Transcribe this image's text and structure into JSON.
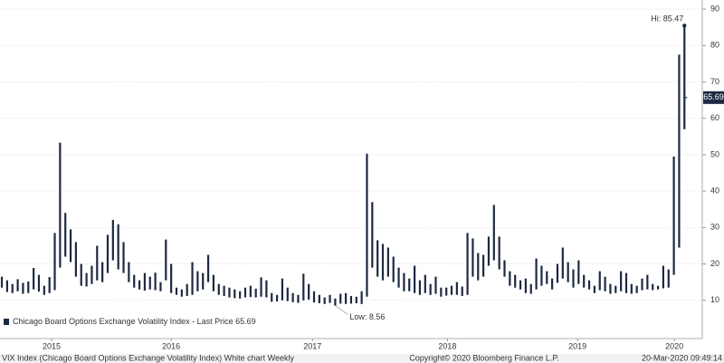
{
  "chart_data": {
    "type": "hlbar",
    "series": [
      {
        "name": "Chicago Board Options Exchange Volatility Index - Last Price",
        "color": "#1d2942",
        "high": [
          16.5,
          15.5,
          14.5,
          15.8,
          14.8,
          15.2,
          18.9,
          17.0,
          14.0,
          16.4,
          28.5,
          53.3,
          34.0,
          29.5,
          26.0,
          20.0,
          17.5,
          19.5,
          25.0,
          20.5,
          28.0,
          32.1,
          30.9,
          26.0,
          20.5,
          17.0,
          15.5,
          17.5,
          16.5,
          17.6,
          15.0,
          26.7,
          20.0,
          13.5,
          13.0,
          14.5,
          20.5,
          18.0,
          17.5,
          22.5,
          17.0,
          14.5,
          14.0,
          13.5,
          13.0,
          12.5,
          13.5,
          14.0,
          13.2,
          16.3,
          15.5,
          12.0,
          11.5,
          16.0,
          13.5,
          12.0,
          11.5,
          17.3,
          14.5,
          12.5,
          11.5,
          10.8,
          11.5,
          10.5,
          11.8,
          12.0,
          11.2,
          11.0,
          12.5,
          50.3,
          37.0,
          26.5,
          25.5,
          24.5,
          22.0,
          19.0,
          17.5,
          16.0,
          19.5,
          15.5,
          17.0,
          14.5,
          16.5,
          13.5,
          13.5,
          14.0,
          15.0,
          13.8,
          28.5,
          27.0,
          23.0,
          22.5,
          27.5,
          36.2,
          27.5,
          21.0,
          18.0,
          17.0,
          15.5,
          16.0,
          14.5,
          21.5,
          19.5,
          18.0,
          16.0,
          20.0,
          24.5,
          20.5,
          18.5,
          21.0,
          17.0,
          15.5,
          14.0,
          18.0,
          16.5,
          14.5,
          14.0,
          18.0,
          17.5,
          14.5,
          14.0,
          16.0,
          17.0,
          14.5,
          14.0,
          19.5,
          18.5,
          49.5,
          77.5,
          85.47
        ],
        "low": [
          13.5,
          12.3,
          12.0,
          12.5,
          11.8,
          12.0,
          13.0,
          12.4,
          11.5,
          12.0,
          12.8,
          19.0,
          22.0,
          20.5,
          16.5,
          14.0,
          13.8,
          14.5,
          15.5,
          15.0,
          17.5,
          21.0,
          18.5,
          17.5,
          15.0,
          13.5,
          13.0,
          12.7,
          13.0,
          12.8,
          12.5,
          15.5,
          12.0,
          11.5,
          11.0,
          11.2,
          11.5,
          12.5,
          13.0,
          15.0,
          12.5,
          11.5,
          11.2,
          10.8,
          10.6,
          10.5,
          10.8,
          10.9,
          10.8,
          11.0,
          10.8,
          9.6,
          9.7,
          10.0,
          9.8,
          9.5,
          9.3,
          10.0,
          10.2,
          9.4,
          9.2,
          9.0,
          9.3,
          8.56,
          9.1,
          9.0,
          9.1,
          9.2,
          9.0,
          11.0,
          19.0,
          16.5,
          15.5,
          16.5,
          15.0,
          13.5,
          12.5,
          12.5,
          12.0,
          11.5,
          12.0,
          11.5,
          11.8,
          11.0,
          11.3,
          11.5,
          11.5,
          11.2,
          11.5,
          16.5,
          15.5,
          16.5,
          19.5,
          21.0,
          18.5,
          16.5,
          14.0,
          13.5,
          13.0,
          12.0,
          11.8,
          13.0,
          14.0,
          14.5,
          13.0,
          14.8,
          16.0,
          15.0,
          13.5,
          14.5,
          13.5,
          13.0,
          12.0,
          12.8,
          12.5,
          11.8,
          12.0,
          12.5,
          12.0,
          11.8,
          12.0,
          12.8,
          13.0,
          12.8,
          13.0,
          13.3,
          13.5,
          17.0,
          24.5,
          57.0
        ],
        "last": 65.69
      }
    ],
    "annotations": [
      {
        "label": "Hi: 85.47",
        "value": 85.47
      },
      {
        "label": "Low: 8.56",
        "value": 8.56
      }
    ],
    "xlim": [
      -0.35,
      132.2
    ],
    "xticks": [
      {
        "value": 9.4,
        "label": "2015"
      },
      {
        "value": 32,
        "label": "2016"
      },
      {
        "value": 58.7,
        "label": "2017"
      },
      {
        "value": 84.2,
        "label": "2018"
      },
      {
        "value": 108.8,
        "label": "2019"
      },
      {
        "value": 127.1,
        "label": "2020"
      }
    ],
    "ylim": [
      0,
      92.5
    ],
    "yticks": [
      10,
      20,
      30,
      40,
      50,
      60,
      70,
      80,
      90
    ],
    "grid": true
  },
  "footer": {
    "left": "VIX Index (Chicago Board Options Exchange Volatility Index) White chart  Weekly",
    "center": "Copyright© 2020 Bloomberg Finance L.P.",
    "right": "20-Mar-2020 09:49:14"
  }
}
